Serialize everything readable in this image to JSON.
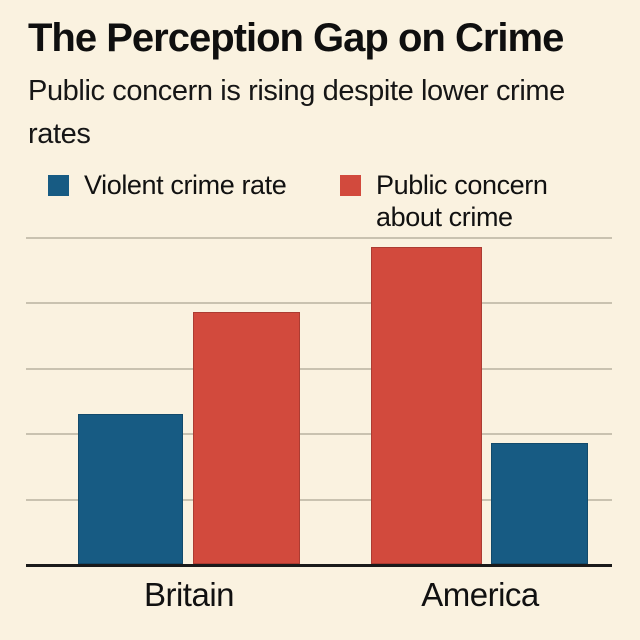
{
  "palette": {
    "background": "#faf2e0",
    "gridline": "#c9c2b0",
    "axis_line": "#1a1a1a",
    "text": "#111111"
  },
  "chart_data": {
    "type": "bar",
    "title": "The Perception Gap on Crime",
    "subtitle": "Public concern is rising despite lower crime rates",
    "categories": [
      "Britain",
      "America"
    ],
    "series": [
      {
        "name": "Violent crime rate",
        "color": "#175b83",
        "values": [
          46,
          37
        ]
      },
      {
        "name": "Public concern about crime",
        "color": "#d24a3d",
        "values": [
          77,
          97
        ]
      }
    ],
    "bar_order_by_category": [
      [
        "Violent crime rate",
        "Public concern about crime"
      ],
      [
        "Public concern about crime",
        "Violent crime rate"
      ]
    ],
    "xlabel": "",
    "ylabel": "",
    "ylim": [
      0,
      100
    ],
    "grid_interval": 20,
    "grid": true,
    "y_tick_labels_visible": false,
    "legend_position": "top"
  }
}
